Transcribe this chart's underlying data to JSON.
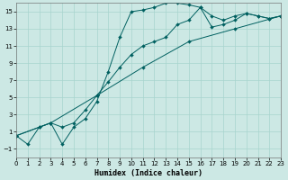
{
  "xlabel": "Humidex (Indice chaleur)",
  "bg_color": "#cce8e4",
  "grid_color": "#a8d4ce",
  "line_color": "#006060",
  "xlim": [
    0,
    23
  ],
  "ylim": [
    -2,
    16
  ],
  "xticks": [
    0,
    1,
    2,
    3,
    4,
    5,
    6,
    7,
    8,
    9,
    10,
    11,
    12,
    13,
    14,
    15,
    16,
    17,
    18,
    19,
    20,
    21,
    22,
    23
  ],
  "yticks": [
    -1,
    1,
    3,
    5,
    7,
    9,
    11,
    13,
    15
  ],
  "curve_loop_x": [
    0,
    1,
    2,
    3,
    4,
    5,
    6,
    7,
    8,
    9,
    10,
    11,
    12,
    13,
    14,
    15,
    16,
    17,
    18,
    19,
    20,
    21,
    22,
    23
  ],
  "curve_loop_y": [
    0.5,
    -0.5,
    1.5,
    2.0,
    -0.5,
    1.5,
    2.5,
    4.5,
    8.0,
    12.0,
    15.0,
    15.2,
    15.5,
    16.0,
    16.0,
    15.8,
    15.5,
    14.5,
    14.0,
    14.5,
    14.8,
    14.5,
    14.2,
    14.5
  ],
  "curve_diag1_x": [
    0,
    2,
    3,
    4,
    5,
    6,
    7,
    8,
    9,
    10,
    11,
    12,
    13,
    14,
    15,
    16,
    17,
    18,
    19,
    20,
    21,
    22,
    23
  ],
  "curve_diag1_y": [
    0.5,
    1.5,
    2.0,
    1.5,
    2.0,
    3.5,
    5.2,
    6.8,
    8.5,
    10.0,
    11.0,
    11.5,
    12.0,
    13.5,
    14.0,
    15.5,
    13.2,
    13.5,
    14.0,
    14.8,
    14.5,
    14.2,
    14.5
  ],
  "curve_diag2_x": [
    0,
    3,
    7,
    11,
    15,
    19,
    23
  ],
  "curve_diag2_y": [
    0.5,
    2.0,
    5.2,
    8.5,
    11.5,
    13.0,
    14.5
  ],
  "markersize": 2,
  "lw": 0.7
}
